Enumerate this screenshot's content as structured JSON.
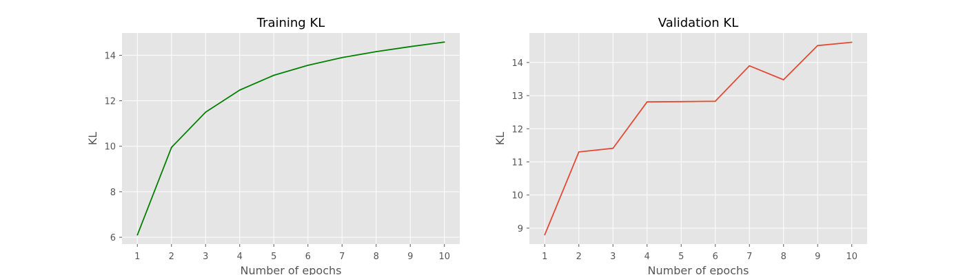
{
  "chart_data": [
    {
      "type": "line",
      "title": "Training KL",
      "xlabel": "Number of epochs",
      "ylabel": "KL",
      "x": [
        1,
        2,
        3,
        4,
        5,
        6,
        7,
        8,
        9,
        10
      ],
      "series": [
        {
          "values": [
            6.1,
            9.95,
            11.5,
            12.47,
            13.12,
            13.56,
            13.9,
            14.16,
            14.38,
            14.58
          ],
          "color": "#008000"
        }
      ],
      "xlim": [
        0.55,
        10.45
      ],
      "ylim": [
        5.7,
        14.98
      ],
      "xticks": [
        1,
        2,
        3,
        4,
        5,
        6,
        7,
        8,
        9,
        10
      ],
      "yticks": [
        6,
        8,
        10,
        12,
        14
      ],
      "grid": true,
      "background": "#e5e5e5"
    },
    {
      "type": "line",
      "title": "Validation KL",
      "xlabel": "Number of epochs",
      "ylabel": "KL",
      "x": [
        1,
        2,
        3,
        4,
        5,
        6,
        7,
        8,
        9,
        10
      ],
      "series": [
        {
          "values": [
            8.8,
            11.3,
            11.41,
            12.81,
            12.82,
            12.83,
            13.9,
            13.48,
            14.51,
            14.61
          ],
          "color": "#e24a33"
        }
      ],
      "xlim": [
        0.55,
        10.45
      ],
      "ylim": [
        8.52,
        14.89
      ],
      "xticks": [
        1,
        2,
        3,
        4,
        5,
        6,
        7,
        8,
        9,
        10
      ],
      "yticks": [
        9,
        10,
        11,
        12,
        13,
        14
      ],
      "grid": true,
      "background": "#e5e5e5"
    }
  ]
}
